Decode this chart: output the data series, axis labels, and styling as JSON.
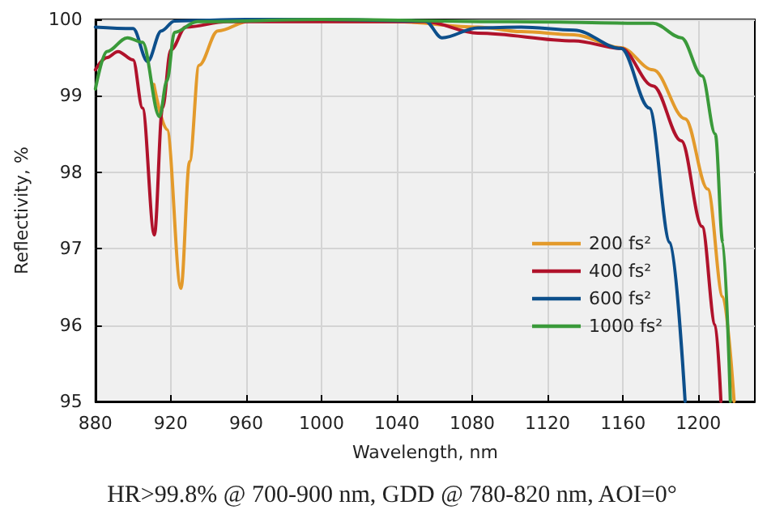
{
  "chart_data": {
    "type": "line",
    "xlabel": "Wavelength, nm",
    "ylabel": "Reflectivity, %",
    "annotations": [
      "HR>99.8% @ 700-900 nm, GDD @ 780-820 nm, AOI=0°"
    ],
    "xlim": [
      880,
      1230
    ],
    "xticks": [
      880,
      920,
      960,
      1000,
      1040,
      1080,
      1120,
      1160,
      1200
    ],
    "ylim": [
      95,
      100
    ],
    "yticks": [
      95,
      96,
      97,
      98,
      99,
      100
    ],
    "grid": true,
    "legend": "right",
    "marker": "none",
    "line_style": "solid",
    "series": [
      {
        "name": "200 fs²",
        "color": "#e39a2b",
        "x": [
          911,
          918,
          925.4,
          930,
          935,
          945,
          962,
          1040,
          1083,
          1106,
          1134,
          1159,
          1176,
          1193,
          1205,
          1213,
          1219
        ],
        "values": [
          99.15,
          98.56,
          96.48,
          98.14,
          99.4,
          99.85,
          99.98,
          99.97,
          99.9,
          99.84,
          99.8,
          99.63,
          99.34,
          98.7,
          97.78,
          96.37,
          95
        ]
      },
      {
        "name": "400 fs²",
        "color": "#b0122b",
        "x": [
          880,
          886,
          892,
          900,
          905,
          911.3,
          915.6,
          920,
          928,
          950,
          1055,
          1083,
          1134,
          1159,
          1176,
          1191,
          1202,
          1209,
          1212
        ],
        "values": [
          99.34,
          99.5,
          99.58,
          99.47,
          98.84,
          97.18,
          98.84,
          99.6,
          99.9,
          99.97,
          99.97,
          99.82,
          99.72,
          99.62,
          99.13,
          98.41,
          97.29,
          96,
          95
        ]
      },
      {
        "name": "600 fs²",
        "color": "#0d4f8b",
        "x": [
          880,
          900,
          907.7,
          915,
          922,
          960,
          1000,
          1055,
          1064,
          1083,
          1106,
          1134,
          1159,
          1174,
          1185,
          1193
        ],
        "values": [
          99.9,
          99.88,
          99.45,
          99.85,
          99.98,
          100,
          100,
          99.98,
          99.76,
          99.89,
          99.9,
          99.86,
          99.62,
          98.84,
          97.08,
          95
        ]
      },
      {
        "name": "1000 fs²",
        "color": "#3a9a3a",
        "x": [
          880,
          886,
          897,
          905,
          914,
          918,
          922,
          934,
          1000,
          1100,
          1176,
          1191,
          1202,
          1209,
          1213,
          1217
        ],
        "values": [
          99.09,
          99.58,
          99.76,
          99.7,
          98.73,
          99.2,
          99.83,
          99.97,
          100,
          99.97,
          99.95,
          99.76,
          99.26,
          98.5,
          97.08,
          95
        ]
      }
    ]
  }
}
